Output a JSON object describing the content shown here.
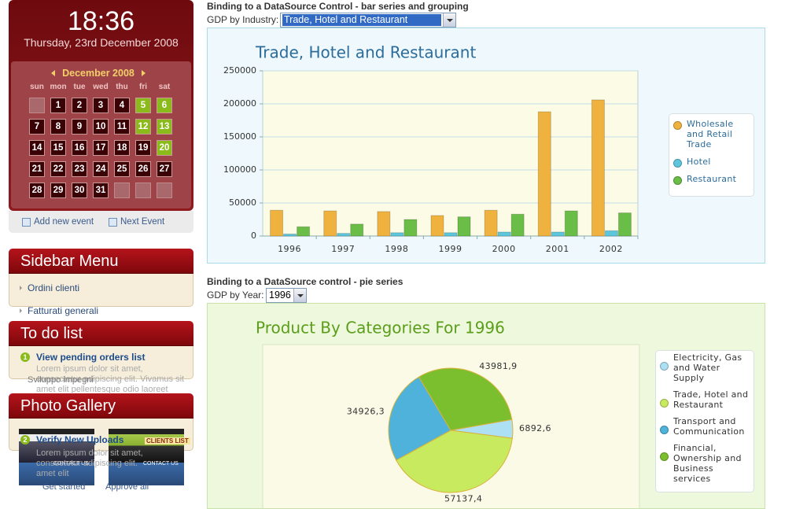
{
  "sidebar": {
    "clock": {
      "time": "18:36",
      "date": "Thursday, 23rd December 2008"
    },
    "calendar": {
      "month": "December 2008",
      "weekdays": [
        "sun",
        "mon",
        "tue",
        "wed",
        "thu",
        "fri",
        "sat"
      ],
      "weeks": [
        [
          null,
          1,
          2,
          3,
          4,
          5,
          6
        ],
        [
          7,
          8,
          9,
          10,
          11,
          12,
          13
        ],
        [
          14,
          15,
          16,
          17,
          18,
          19,
          20
        ],
        [
          21,
          22,
          23,
          24,
          25,
          26,
          27
        ],
        [
          28,
          29,
          30,
          31,
          null,
          null,
          null
        ]
      ],
      "highlighted": [
        5,
        6,
        12,
        13,
        20
      ]
    },
    "links": [
      "Add new event",
      "Next Event"
    ],
    "menu": {
      "title": "Sidebar Menu",
      "items": [
        "Ordini clienti",
        "Fatturati generali"
      ]
    },
    "todo": {
      "title": "To do list",
      "items": [
        {
          "number": 1,
          "label": "View pending orders list",
          "text": [
            "Lorem ipsum dolor sit amet,",
            "consectetur adipiscing elit. Vivamus sit",
            "amet elit pellentesque odio laoreet"
          ]
        },
        {
          "number": 2,
          "label": "Verify New Uploads",
          "text": [
            "Lorem ipsum dolor sit amet,",
            "consectetur adipiscing elit.",
            "amet elit"
          ]
        }
      ],
      "stray": [
        "Sviluppo impegni",
        "Get started",
        "Approve all"
      ]
    },
    "gallery": {
      "title": "Photo Gallery",
      "thumbnails": [
        "CLIENTS LIST",
        "CONTACT US",
        "CONTACT US"
      ]
    }
  },
  "bar_section": {
    "heading": "Binding to a DataSource Control - bar series and grouping",
    "selector_label": "GDP by Industry:",
    "selected": "Trade, Hotel and Restaurant"
  },
  "pie_section": {
    "heading": "Binding to a DataSource control - pie series",
    "selector_label": "GDP by Year:",
    "selected": "1996"
  },
  "chart_data": [
    {
      "type": "bar",
      "title": "Trade, Hotel and Restaurant",
      "categories": [
        "1996",
        "1997",
        "1998",
        "1999",
        "2000",
        "2001",
        "2002"
      ],
      "series": [
        {
          "name": "Wholesale and Retail Trade",
          "color": "#efb23e",
          "values": [
            39000,
            38000,
            37000,
            31000,
            39000,
            188000,
            206000
          ]
        },
        {
          "name": "Hotel",
          "color": "#5cc6dc",
          "values": [
            3000,
            4000,
            5000,
            5000,
            6000,
            6000,
            8000
          ]
        },
        {
          "name": "Restaurant",
          "color": "#6abd46",
          "values": [
            14000,
            18000,
            25000,
            29000,
            33000,
            38000,
            35000
          ]
        }
      ],
      "ylim": [
        0,
        250000
      ],
      "yticks": [
        0,
        50000,
        100000,
        150000,
        200000,
        250000
      ],
      "grid": true,
      "legend": "right"
    },
    {
      "type": "pie",
      "title": "Product By Categories For 1996",
      "categories": [
        "Electricity, Gas and Water Supply",
        "Trade, Hotel and Restaurant",
        "Transport and Communication",
        "Financial, Ownership and Business services"
      ],
      "values": [
        6892.6,
        57137.4,
        34926.3,
        43981.9
      ],
      "value_labels": [
        "6892,6",
        "57137,4",
        "34926,3",
        "43981,9"
      ],
      "colors": [
        "#ade0f2",
        "#c8ea5e",
        "#4eb2da",
        "#7cbf2e"
      ],
      "legend": "right"
    }
  ]
}
